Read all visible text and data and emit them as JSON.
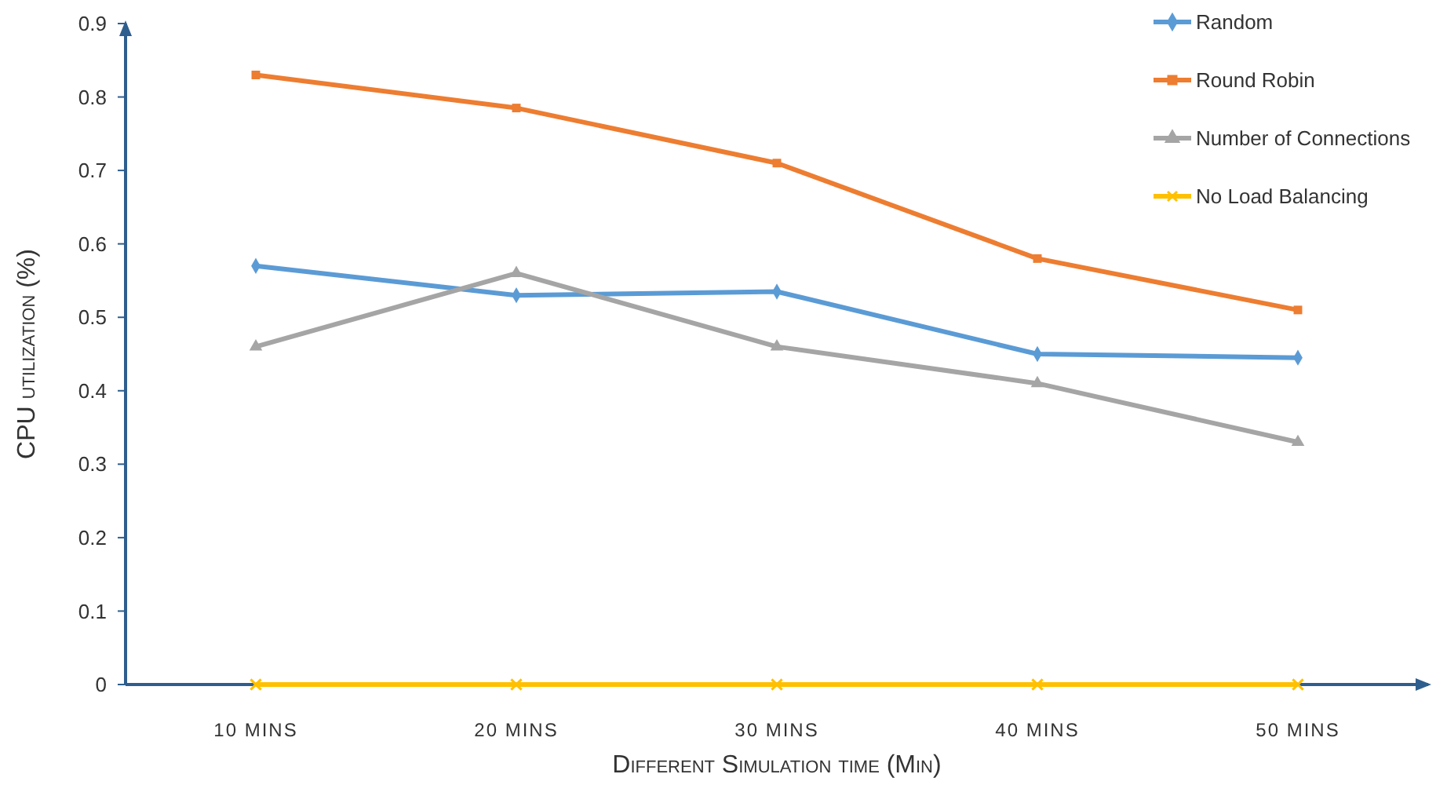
{
  "chart_data": {
    "type": "line",
    "xlabel": "Different Simulation time (Min)",
    "ylabel": "CPU utilization (%)",
    "categories": [
      "10 MINS",
      "20 MINS",
      "30 MINS",
      "40 MINS",
      "50 MINS"
    ],
    "ylim": [
      0,
      0.9
    ],
    "yticks": [
      {
        "value": 0,
        "label": "0"
      },
      0.1,
      0.2,
      0.3,
      0.4,
      0.5,
      0.6,
      0.7,
      0.8,
      0.9
    ],
    "grid": false,
    "legend": "top right",
    "series": [
      {
        "name": "Random",
        "color": "#5b9bd5",
        "marker": "diamond",
        "values": [
          0.57,
          0.53,
          0.535,
          0.45,
          0.445
        ]
      },
      {
        "name": "Round Robin",
        "color": "#ed7d31",
        "marker": "square",
        "values": [
          0.83,
          0.785,
          0.71,
          0.58,
          0.51
        ]
      },
      {
        "name": "Number of Connections",
        "color": "#a5a5a5",
        "marker": "triangle",
        "values": [
          0.46,
          0.56,
          0.46,
          0.41,
          0.33
        ]
      },
      {
        "name": "No Load Balancing",
        "color": "#ffc000",
        "marker": "cross",
        "values": [
          0,
          0,
          0,
          0,
          0
        ]
      }
    ]
  }
}
